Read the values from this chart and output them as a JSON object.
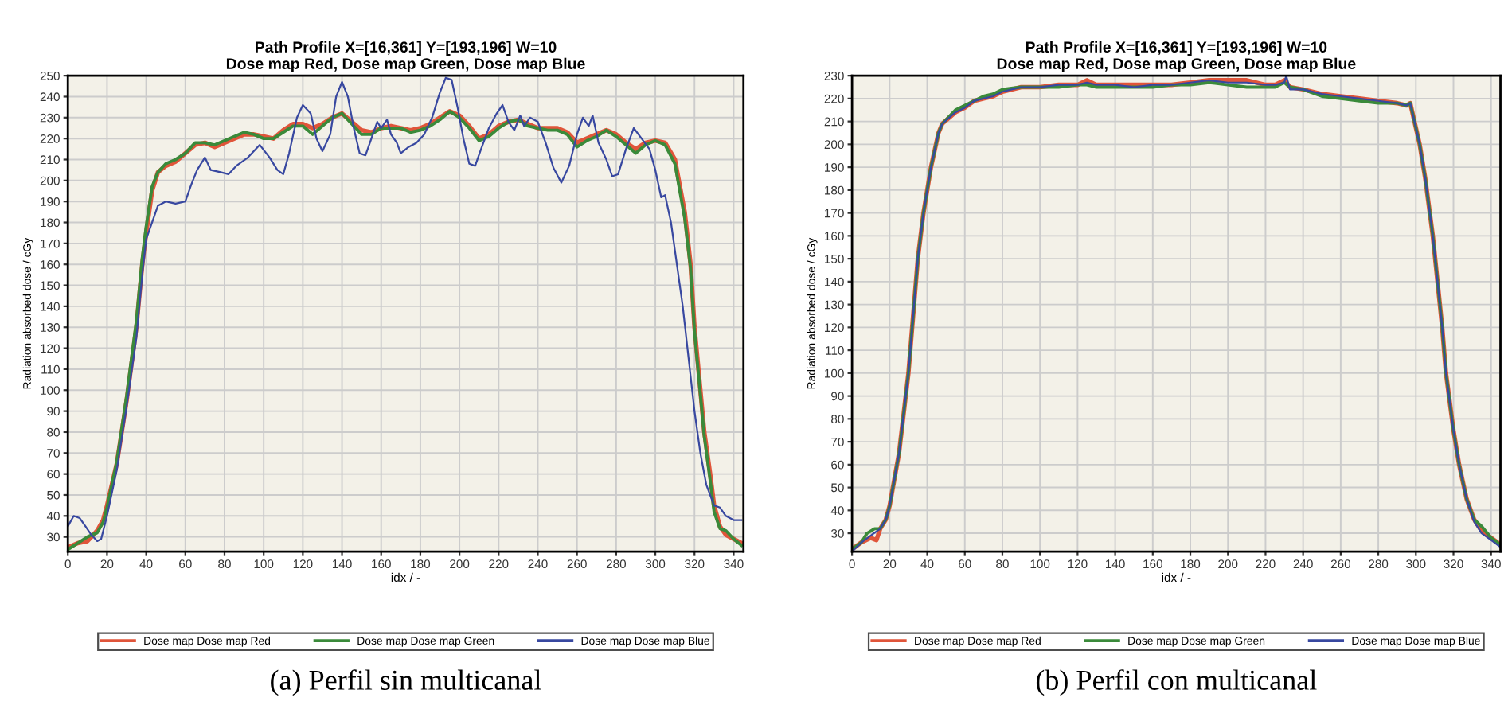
{
  "chart_data": [
    {
      "type": "line",
      "title": "Path Profile X=[16,361] Y=[193,196] W=10",
      "subtitle": "Dose map Red, Dose map Green, Dose map Blue",
      "xlabel": "idx / -",
      "ylabel": "Radiation absorbed dose / cGy",
      "annotations": [
        "(a) Perfil sin multicanal"
      ],
      "xlim": [
        0,
        345
      ],
      "ylim": [
        23,
        250
      ],
      "xticks": [
        0,
        20,
        40,
        60,
        80,
        100,
        120,
        140,
        160,
        180,
        200,
        220,
        240,
        260,
        280,
        300,
        320,
        340
      ],
      "yticks": [
        30,
        40,
        50,
        60,
        70,
        80,
        90,
        100,
        110,
        120,
        130,
        140,
        150,
        160,
        170,
        180,
        190,
        200,
        210,
        220,
        230,
        240,
        250
      ],
      "grid": true,
      "legend": "bottom",
      "marker": "none",
      "line_style": "solid",
      "series": [
        {
          "name": "Dose map Dose map Red",
          "color": "#e0553a",
          "x": [
            0,
            5,
            10,
            15,
            18,
            20,
            25,
            30,
            35,
            38,
            40,
            43,
            46,
            50,
            55,
            60,
            65,
            70,
            75,
            80,
            85,
            90,
            95,
            100,
            105,
            110,
            115,
            120,
            125,
            130,
            135,
            140,
            145,
            150,
            155,
            160,
            165,
            170,
            175,
            180,
            185,
            190,
            195,
            200,
            205,
            210,
            215,
            220,
            225,
            230,
            235,
            240,
            245,
            250,
            255,
            260,
            265,
            270,
            275,
            280,
            285,
            290,
            295,
            300,
            305,
            310,
            315,
            318,
            320,
            323,
            325,
            328,
            330,
            333,
            336,
            340,
            344
          ],
          "values": [
            25,
            27,
            28,
            33,
            38,
            45,
            65,
            95,
            130,
            160,
            175,
            195,
            204,
            207,
            209,
            213,
            217,
            218,
            216,
            218,
            220,
            222,
            222,
            221,
            220,
            224,
            227,
            227,
            225,
            227,
            230,
            232,
            228,
            224,
            223,
            225,
            226,
            225,
            224,
            225,
            227,
            230,
            233,
            231,
            226,
            220,
            222,
            226,
            228,
            229,
            227,
            225,
            225,
            225,
            223,
            218,
            220,
            222,
            224,
            222,
            218,
            215,
            218,
            219,
            218,
            210,
            185,
            160,
            130,
            100,
            80,
            60,
            45,
            35,
            31,
            29,
            27
          ]
        },
        {
          "name": "Dose map Dose map Green",
          "color": "#3a8a3a",
          "x": [
            0,
            5,
            10,
            15,
            18,
            20,
            25,
            30,
            35,
            38,
            40,
            43,
            46,
            50,
            55,
            60,
            65,
            70,
            75,
            80,
            85,
            90,
            95,
            100,
            105,
            110,
            115,
            120,
            125,
            130,
            135,
            140,
            145,
            150,
            155,
            160,
            165,
            170,
            175,
            180,
            185,
            190,
            195,
            200,
            205,
            210,
            215,
            220,
            225,
            230,
            235,
            240,
            245,
            250,
            255,
            260,
            265,
            270,
            275,
            280,
            285,
            290,
            295,
            300,
            305,
            310,
            315,
            318,
            320,
            323,
            325,
            328,
            330,
            333,
            336,
            340,
            344
          ],
          "values": [
            24,
            27,
            30,
            32,
            37,
            44,
            66,
            97,
            133,
            163,
            178,
            197,
            204,
            208,
            210,
            213,
            218,
            218,
            217,
            219,
            221,
            223,
            222,
            220,
            220,
            223,
            226,
            226,
            222,
            226,
            230,
            232,
            227,
            222,
            222,
            225,
            225,
            225,
            223,
            224,
            226,
            229,
            233,
            230,
            225,
            219,
            221,
            225,
            228,
            229,
            226,
            225,
            224,
            224,
            222,
            216,
            219,
            221,
            224,
            221,
            217,
            213,
            217,
            219,
            217,
            208,
            182,
            158,
            128,
            98,
            78,
            57,
            42,
            34,
            33,
            29,
            26
          ]
        },
        {
          "name": "Dose map Dose map Blue",
          "color": "#3848a0",
          "x": [
            0,
            3,
            6,
            9,
            12,
            15,
            17,
            20,
            25,
            30,
            35,
            38,
            40,
            43,
            46,
            50,
            55,
            60,
            63,
            66,
            70,
            73,
            78,
            82,
            86,
            92,
            98,
            103,
            107,
            110,
            113,
            117,
            120,
            124,
            127,
            130,
            134,
            137,
            140,
            143,
            146,
            149,
            152,
            155,
            158,
            160,
            163,
            165,
            168,
            170,
            174,
            178,
            182,
            186,
            190,
            193,
            196,
            199,
            202,
            205,
            208,
            211,
            215,
            219,
            222,
            225,
            228,
            231,
            233,
            236,
            240,
            244,
            248,
            252,
            256,
            260,
            263,
            266,
            268,
            271,
            275,
            278,
            281,
            285,
            289,
            293,
            297,
            300,
            303,
            305,
            308,
            311,
            314,
            317,
            320,
            323,
            326,
            330,
            333,
            336,
            340,
            344
          ],
          "values": [
            35,
            40,
            39,
            35,
            31,
            28,
            29,
            40,
            62,
            92,
            125,
            155,
            172,
            180,
            188,
            190,
            189,
            190,
            198,
            205,
            211,
            205,
            204,
            203,
            207,
            211,
            217,
            211,
            205,
            203,
            213,
            230,
            236,
            232,
            220,
            214,
            222,
            240,
            247,
            240,
            225,
            213,
            212,
            220,
            228,
            225,
            229,
            222,
            218,
            213,
            216,
            218,
            222,
            230,
            242,
            249,
            248,
            235,
            220,
            208,
            207,
            215,
            225,
            232,
            236,
            228,
            224,
            231,
            226,
            230,
            228,
            218,
            206,
            199,
            207,
            222,
            230,
            226,
            231,
            218,
            210,
            202,
            203,
            215,
            225,
            220,
            215,
            205,
            192,
            193,
            180,
            160,
            140,
            115,
            90,
            70,
            55,
            45,
            44,
            40,
            38,
            38
          ]
        }
      ]
    },
    {
      "type": "line",
      "title": "Path Profile X=[16,361] Y=[193,196] W=10",
      "subtitle": "Dose map Red, Dose map Green, Dose map Blue",
      "xlabel": "idx / -",
      "ylabel": "Radiation absorbed dose / cGy",
      "annotations": [
        "(b) Perfil con multicanal"
      ],
      "xlim": [
        0,
        345
      ],
      "ylim": [
        22,
        230
      ],
      "xticks": [
        0,
        20,
        40,
        60,
        80,
        100,
        120,
        140,
        160,
        180,
        200,
        220,
        240,
        260,
        280,
        300,
        320,
        340
      ],
      "yticks": [
        30,
        40,
        50,
        60,
        70,
        80,
        90,
        100,
        110,
        120,
        130,
        140,
        150,
        160,
        170,
        180,
        190,
        200,
        210,
        220,
        230
      ],
      "grid": true,
      "legend": "bottom",
      "marker": "none",
      "line_style": "solid",
      "series": [
        {
          "name": "Dose map Dose map Red",
          "color": "#e0553a",
          "x": [
            0,
            5,
            10,
            13,
            15,
            18,
            20,
            25,
            30,
            32,
            35,
            38,
            42,
            46,
            48,
            55,
            60,
            65,
            70,
            75,
            80,
            90,
            100,
            110,
            120,
            125,
            130,
            140,
            150,
            160,
            170,
            180,
            190,
            200,
            210,
            220,
            225,
            230,
            233,
            240,
            250,
            260,
            270,
            280,
            290,
            295,
            297,
            302,
            305,
            309,
            314,
            316,
            320,
            323,
            327,
            331,
            335,
            340,
            345
          ],
          "values": [
            23,
            26,
            28,
            27,
            32,
            36,
            42,
            65,
            100,
            120,
            150,
            170,
            190,
            205,
            209,
            214,
            216,
            219,
            220,
            221,
            223,
            225,
            225,
            226,
            226,
            228,
            226,
            226,
            226,
            226,
            226,
            227,
            228,
            228,
            228,
            226,
            226,
            228,
            225,
            224,
            222,
            221,
            220,
            219,
            218,
            217,
            218,
            200,
            185,
            160,
            120,
            100,
            75,
            60,
            45,
            36,
            31,
            28,
            25
          ]
        },
        {
          "name": "Dose map Dose map Green",
          "color": "#3a8a3a",
          "x": [
            0,
            5,
            8,
            12,
            15,
            18,
            20,
            25,
            30,
            32,
            35,
            38,
            42,
            46,
            48,
            55,
            60,
            65,
            70,
            75,
            80,
            90,
            100,
            110,
            120,
            125,
            130,
            140,
            150,
            160,
            170,
            180,
            190,
            200,
            210,
            220,
            225,
            230,
            233,
            240,
            250,
            260,
            270,
            280,
            290,
            295,
            297,
            302,
            305,
            309,
            314,
            316,
            320,
            323,
            327,
            331,
            335,
            340,
            345
          ],
          "values": [
            23,
            26,
            30,
            32,
            32,
            36,
            42,
            65,
            100,
            120,
            150,
            170,
            190,
            205,
            209,
            215,
            217,
            219,
            221,
            222,
            224,
            225,
            225,
            225,
            226,
            226,
            225,
            225,
            225,
            225,
            226,
            226,
            227,
            226,
            225,
            225,
            225,
            227,
            225,
            224,
            221,
            220,
            219,
            218,
            218,
            217,
            218,
            200,
            185,
            160,
            120,
            100,
            75,
            60,
            45,
            36,
            33,
            28,
            25
          ]
        },
        {
          "name": "Dose map Dose map Blue",
          "color": "#3848a0",
          "x": [
            0,
            5,
            10,
            15,
            18,
            20,
            25,
            30,
            32,
            35,
            38,
            42,
            46,
            48,
            55,
            60,
            65,
            70,
            75,
            80,
            90,
            100,
            110,
            120,
            125,
            130,
            140,
            150,
            160,
            170,
            180,
            190,
            200,
            210,
            220,
            225,
            230,
            231,
            233,
            240,
            250,
            260,
            270,
            280,
            290,
            295,
            297,
            302,
            305,
            309,
            314,
            316,
            320,
            323,
            327,
            331,
            335,
            340,
            345
          ],
          "values": [
            22,
            26,
            29,
            32,
            36,
            42,
            65,
            100,
            120,
            150,
            170,
            190,
            205,
            209,
            214,
            216,
            219,
            220,
            221,
            223,
            225,
            225,
            226,
            226,
            227,
            226,
            226,
            225,
            226,
            226,
            227,
            228,
            227,
            227,
            226,
            226,
            227,
            230,
            224,
            224,
            222,
            221,
            220,
            219,
            218,
            217,
            218,
            200,
            185,
            160,
            120,
            100,
            75,
            60,
            45,
            35,
            30,
            27,
            24
          ]
        }
      ]
    }
  ]
}
